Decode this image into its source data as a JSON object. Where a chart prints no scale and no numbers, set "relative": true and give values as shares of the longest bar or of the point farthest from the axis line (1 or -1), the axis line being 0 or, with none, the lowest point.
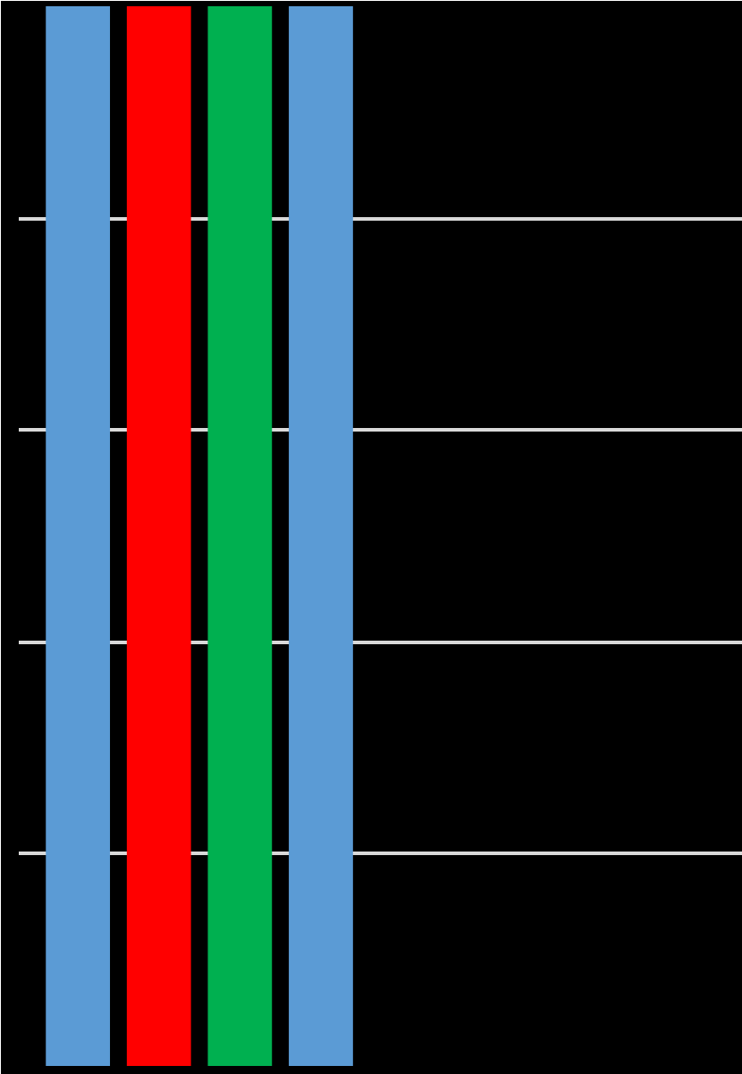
{
  "chart_data": {
    "type": "bar",
    "relative": true,
    "grid": "y",
    "categories": [
      null,
      null,
      null,
      null
    ],
    "values": [
      1,
      1,
      1,
      1
    ],
    "colors": [
      "#5b9bd5",
      "#ff0000",
      "#00b050",
      "#5b9bd5"
    ]
  }
}
